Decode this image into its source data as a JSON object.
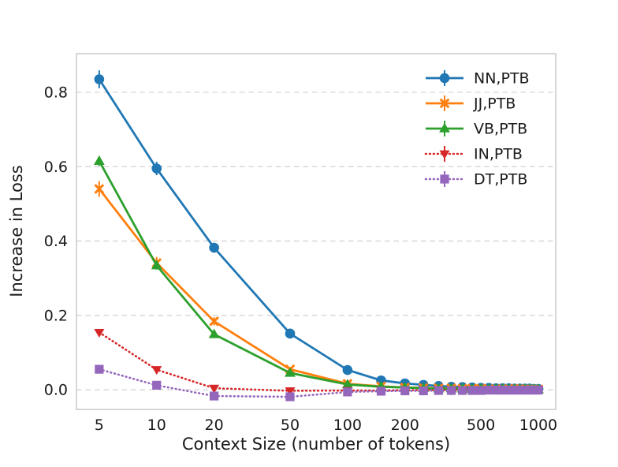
{
  "chart_data": {
    "type": "line",
    "title": "",
    "xlabel": "Context Size (number of tokens)",
    "ylabel": "Increase in Loss",
    "x_scale": "log",
    "xlim": [
      3.8,
      1233
    ],
    "ylim": [
      -0.053,
      0.904
    ],
    "x_ticks": [
      5,
      10,
      20,
      50,
      100,
      200,
      500,
      1000
    ],
    "y_ticks": [
      0.0,
      0.2,
      0.4,
      0.6,
      0.8
    ],
    "grid": "horizontal-dashed",
    "grid_color": "#cccccc",
    "spine_color": "#c0c0c0",
    "text_color": "#1a1a1a",
    "legend_position": "upper right",
    "x": [
      5,
      10,
      20,
      50,
      100,
      150,
      200,
      250,
      300,
      350,
      400,
      450,
      500,
      550,
      600,
      650,
      700,
      750,
      800,
      850,
      900,
      950,
      1000
    ],
    "series": [
      {
        "name": "NN,PTB",
        "color": "#1f77b4",
        "marker": "circle",
        "linestyle": "solid",
        "values": [
          0.835,
          0.595,
          0.382,
          0.151,
          0.053,
          0.025,
          0.017,
          0.013,
          0.01,
          0.008,
          0.007,
          0.006,
          0.005,
          0.005,
          0.004,
          0.004,
          0.004,
          0.003,
          0.003,
          0.003,
          0.003,
          0.002,
          0.002
        ],
        "errors": [
          0.024,
          0.018,
          0.013,
          0.008,
          0.005,
          0.004,
          0.003,
          0.003,
          0.002,
          0.002,
          0.002,
          0.002,
          0.002,
          0.001,
          0.001,
          0.001,
          0.001,
          0.001,
          0.001,
          0.001,
          0.001,
          0.001,
          0.001
        ]
      },
      {
        "name": "JJ,PTB",
        "color": "#ff7f0e",
        "marker": "x",
        "linestyle": "solid",
        "values": [
          0.54,
          0.341,
          0.184,
          0.055,
          0.016,
          0.009,
          0.006,
          0.005,
          0.004,
          0.004,
          0.003,
          0.003,
          0.003,
          0.002,
          0.002,
          0.002,
          0.002,
          0.002,
          0.002,
          0.001,
          0.001,
          0.001,
          0.001
        ],
        "errors": [
          0.021,
          0.016,
          0.011,
          0.006,
          0.003,
          0.002,
          0.002,
          0.002,
          0.001,
          0.001,
          0.001,
          0.001,
          0.001,
          0.001,
          0.001,
          0.001,
          0.001,
          0.001,
          0.001,
          0.001,
          0.001,
          0.001,
          0.001
        ]
      },
      {
        "name": "VB,PTB",
        "color": "#2ca02c",
        "marker": "triangle-up",
        "linestyle": "solid",
        "values": [
          0.615,
          0.334,
          0.149,
          0.045,
          0.014,
          0.008,
          0.006,
          0.004,
          0.003,
          0.003,
          0.003,
          0.002,
          0.002,
          0.002,
          0.002,
          0.002,
          0.001,
          0.001,
          0.001,
          0.001,
          0.001,
          0.001,
          0.001
        ],
        "errors": [
          0.013,
          0.011,
          0.008,
          0.004,
          0.002,
          0.002,
          0.002,
          0.001,
          0.001,
          0.001,
          0.001,
          0.001,
          0.001,
          0.001,
          0.001,
          0.001,
          0.001,
          0.001,
          0.001,
          0.001,
          0.001,
          0.001,
          0.001
        ]
      },
      {
        "name": "IN,PTB",
        "color": "#d62728",
        "marker": "triangle-down",
        "linestyle": "dotted",
        "values": [
          0.154,
          0.054,
          0.004,
          -0.003,
          -0.002,
          -0.002,
          -0.001,
          -0.001,
          -0.001,
          -0.001,
          0.0,
          0.0,
          0.0,
          0.0,
          0.0,
          0.0,
          0.0,
          0.0,
          0.0,
          0.0,
          0.0,
          0.0,
          0.0
        ],
        "errors": [
          0.009,
          0.005,
          0.003,
          0.002,
          0.001,
          0.001,
          0.001,
          0.001,
          0.001,
          0.001,
          0.001,
          0.001,
          0.001,
          0.001,
          0.001,
          0.001,
          0.001,
          0.001,
          0.001,
          0.001,
          0.001,
          0.001,
          0.001
        ]
      },
      {
        "name": "DT,PTB",
        "color": "#9467bd",
        "marker": "square",
        "linestyle": "dotted",
        "values": [
          0.055,
          0.012,
          -0.017,
          -0.019,
          -0.006,
          -0.004,
          -0.003,
          -0.003,
          -0.002,
          -0.002,
          -0.002,
          -0.002,
          -0.002,
          -0.001,
          -0.001,
          -0.001,
          -0.001,
          -0.001,
          -0.001,
          -0.001,
          -0.001,
          -0.001,
          -0.001
        ],
        "errors": [
          0.006,
          0.004,
          0.003,
          0.002,
          0.001,
          0.001,
          0.001,
          0.001,
          0.001,
          0.001,
          0.001,
          0.001,
          0.001,
          0.001,
          0.001,
          0.001,
          0.001,
          0.001,
          0.001,
          0.001,
          0.001,
          0.001,
          0.001
        ]
      }
    ]
  }
}
